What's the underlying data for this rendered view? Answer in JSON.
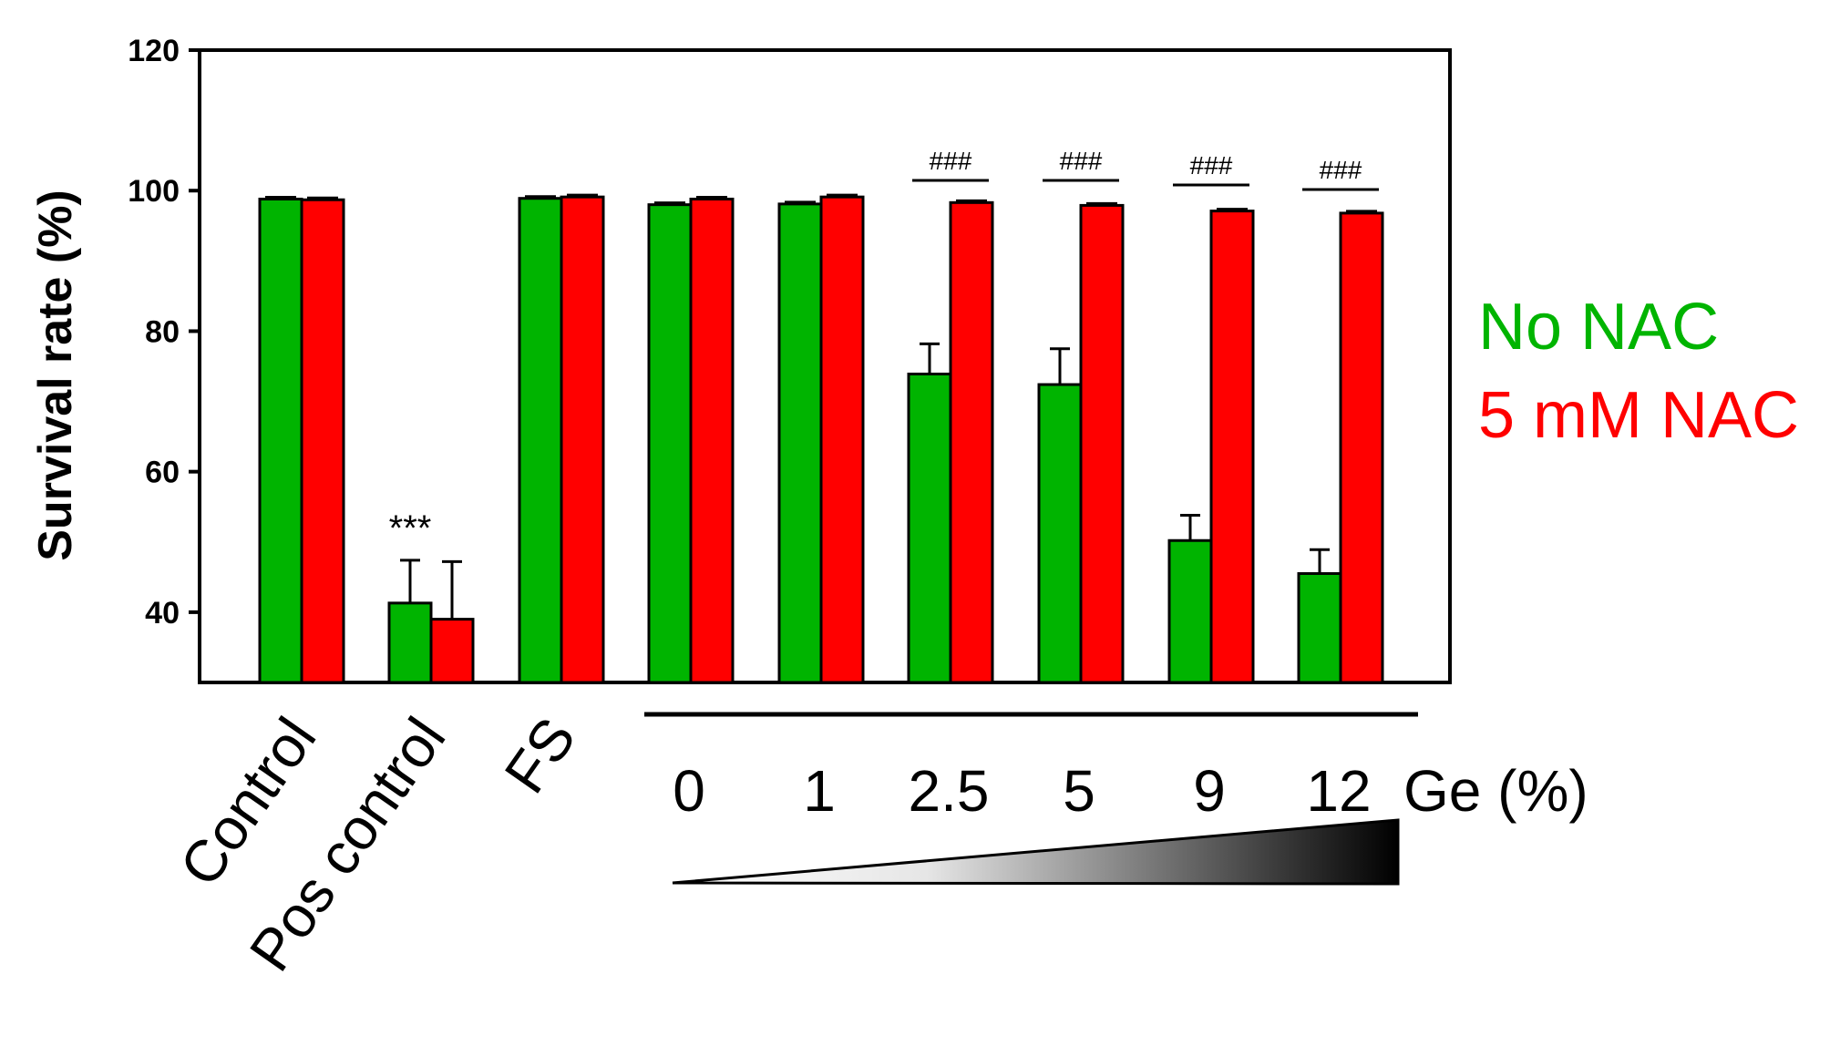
{
  "chart_data": {
    "type": "bar",
    "ylabel": "Survival rate (%)",
    "xlabel": "",
    "ylim": [
      30,
      120
    ],
    "yticks": [
      40,
      60,
      80,
      100,
      120
    ],
    "categories": [
      "Control",
      "Pos control",
      "FS",
      "0",
      "1",
      "2.5",
      "5",
      "9",
      "12"
    ],
    "rotated_categories": [
      "Control",
      "Pos control",
      "FS"
    ],
    "ge_group_label": "Ge (%)",
    "series": [
      {
        "name": "No NAC",
        "color": "#00b400",
        "values": [
          98.8,
          41.3,
          98.9,
          98.0,
          98.1,
          73.9,
          72.4,
          50.2,
          45.5
        ],
        "errors": [
          0.3,
          6.1,
          0.4,
          0.3,
          0.3,
          4.3,
          5.1,
          3.6,
          3.4
        ]
      },
      {
        "name": "5 mM NAC",
        "color": "#ff0000",
        "values": [
          98.7,
          39.0,
          99.1,
          98.8,
          99.1,
          98.3,
          97.9,
          97.1,
          96.8
        ],
        "errors": [
          0.3,
          8.2,
          0.3,
          0.3,
          0.3,
          0.3,
          0.3,
          0.3,
          0.3
        ]
      }
    ],
    "annotations": [
      {
        "category": "Pos control",
        "text": "***"
      },
      {
        "category": "2.5",
        "text": "###"
      },
      {
        "category": "5",
        "text": "###"
      },
      {
        "category": "9",
        "text": "###"
      },
      {
        "category": "12",
        "text": "###"
      }
    ],
    "legend": {
      "placement": "right",
      "items": [
        "No NAC",
        "5 mM NAC"
      ],
      "colors": [
        "#00b400",
        "#ff0000"
      ]
    },
    "gradient_triangle": "increasing Ge concentration (white to black)"
  }
}
